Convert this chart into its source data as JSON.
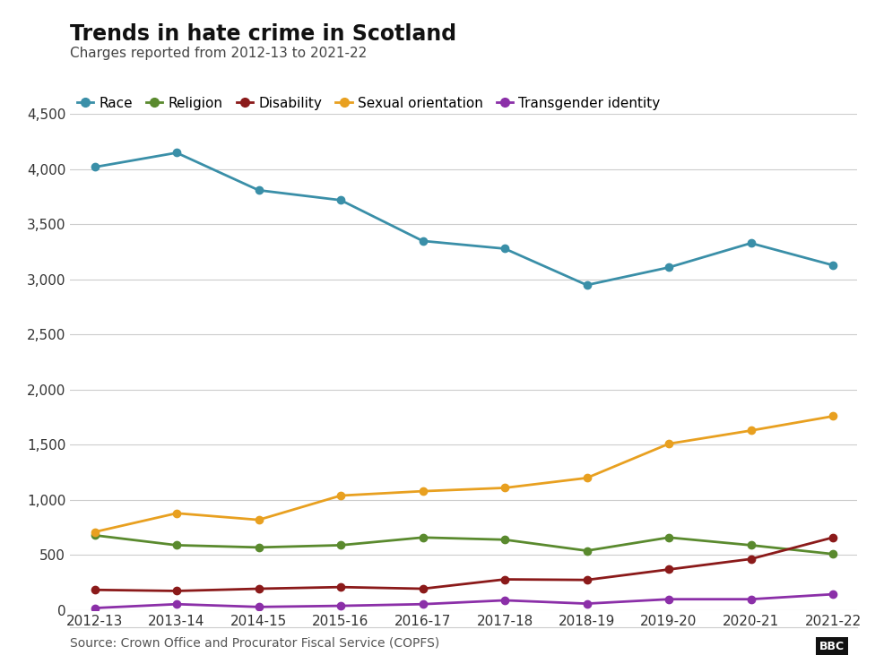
{
  "title": "Trends in hate crime in Scotland",
  "subtitle": "Charges reported from 2012-13 to 2021-22",
  "source": "Source: Crown Office and Procurator Fiscal Service (COPFS)",
  "x_labels": [
    "2012-13",
    "2013-14",
    "2014-15",
    "2015-16",
    "2016-17",
    "2017-18",
    "2018-19",
    "2019-20",
    "2020-21",
    "2021-22"
  ],
  "series": {
    "Race": {
      "values": [
        4020,
        4150,
        3810,
        3720,
        3350,
        3280,
        2950,
        3110,
        3330,
        3130
      ],
      "color": "#3a8fa8",
      "marker": "o"
    },
    "Religion": {
      "values": [
        680,
        590,
        570,
        590,
        660,
        640,
        540,
        660,
        590,
        510
      ],
      "color": "#5a8a2e",
      "marker": "o"
    },
    "Disability": {
      "values": [
        185,
        175,
        195,
        210,
        195,
        280,
        275,
        370,
        465,
        660
      ],
      "color": "#8b1a1a",
      "marker": "o"
    },
    "Sexual orientation": {
      "values": [
        710,
        880,
        820,
        1040,
        1080,
        1110,
        1200,
        1510,
        1630,
        1760
      ],
      "color": "#e8a020",
      "marker": "o"
    },
    "Transgender identity": {
      "values": [
        20,
        55,
        30,
        40,
        55,
        90,
        60,
        100,
        100,
        145
      ],
      "color": "#8b2fa8",
      "marker": "o"
    }
  },
  "ylim": [
    0,
    4500
  ],
  "yticks": [
    0,
    500,
    1000,
    1500,
    2000,
    2500,
    3000,
    3500,
    4000,
    4500
  ],
  "ytick_labels": [
    "0",
    "500",
    "1,000",
    "1,500",
    "2,000",
    "2,500",
    "3,000",
    "3,500",
    "4,000",
    "4,500"
  ],
  "background_color": "#ffffff",
  "grid_color": "#cccccc",
  "title_fontsize": 17,
  "subtitle_fontsize": 11,
  "legend_fontsize": 11,
  "tick_fontsize": 11,
  "source_fontsize": 10
}
